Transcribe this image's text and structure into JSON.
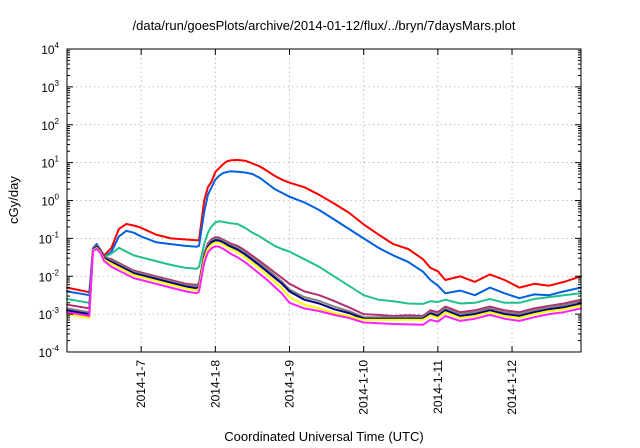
{
  "chart_data": {
    "type": "line",
    "title": "/data/run/goesPlots/archive/2014-01-12/flux/../bryn/7daysMars.plot",
    "xlabel": "Coordinated Universal Time (UTC)",
    "ylabel": "cGy/day",
    "yscale": "log",
    "ylim_exponents": [
      -4,
      4
    ],
    "y_tick_base": "10",
    "y_tick_exponents": [
      "-4",
      "-3",
      "-2",
      "-1",
      "0",
      "1",
      "2",
      "3",
      "4"
    ],
    "xlim_days": [
      6.0,
      12.93
    ],
    "x_tick_days": [
      7,
      8,
      9,
      10,
      11,
      12
    ],
    "x_tick_labels": [
      "2014-1-7",
      "2014-1-8",
      "2014-1-9",
      "2014-1-10",
      "2014-1-11",
      "2014-1-12"
    ],
    "grid": true,
    "legend": "none",
    "x_days": [
      6.0,
      6.3,
      6.35,
      6.4,
      6.45,
      6.5,
      6.6,
      6.7,
      6.8,
      6.9,
      7.0,
      7.2,
      7.4,
      7.6,
      7.75,
      7.78,
      7.85,
      7.9,
      7.95,
      8.0,
      8.05,
      8.1,
      8.15,
      8.2,
      8.3,
      8.4,
      8.5,
      8.6,
      8.7,
      8.8,
      8.9,
      9.0,
      9.2,
      9.4,
      9.6,
      9.8,
      10.0,
      10.2,
      10.4,
      10.6,
      10.8,
      10.9,
      11.0,
      11.1,
      11.3,
      11.5,
      11.7,
      11.9,
      12.1,
      12.3,
      12.5,
      12.7,
      12.93
    ],
    "series": [
      {
        "color": "#ff0000",
        "values_log10": [
          -2.3,
          -2.42,
          -1.3,
          -1.2,
          -1.3,
          -1.45,
          -1.25,
          -0.75,
          -0.62,
          -0.66,
          -0.72,
          -0.9,
          -1.0,
          -1.03,
          -1.05,
          -1.05,
          0.0,
          0.35,
          0.5,
          0.75,
          0.85,
          0.95,
          1.03,
          1.06,
          1.07,
          1.05,
          0.98,
          0.9,
          0.78,
          0.65,
          0.55,
          0.47,
          0.35,
          0.15,
          -0.08,
          -0.32,
          -0.63,
          -0.9,
          -1.15,
          -1.28,
          -1.55,
          -1.78,
          -1.87,
          -2.1,
          -2.0,
          -2.15,
          -1.95,
          -2.1,
          -2.3,
          -2.2,
          -2.25,
          -2.15,
          -2.0
        ]
      },
      {
        "color": "#0060e0",
        "values_log10": [
          -2.4,
          -2.5,
          -1.25,
          -1.15,
          -1.3,
          -1.5,
          -1.35,
          -0.95,
          -0.8,
          -0.85,
          -0.95,
          -1.1,
          -1.15,
          -1.2,
          -1.22,
          -1.2,
          -0.3,
          0.15,
          0.35,
          0.55,
          0.65,
          0.72,
          0.75,
          0.77,
          0.76,
          0.74,
          0.7,
          0.6,
          0.45,
          0.3,
          0.2,
          0.1,
          -0.05,
          -0.25,
          -0.5,
          -0.75,
          -1.0,
          -1.25,
          -1.45,
          -1.62,
          -1.88,
          -2.1,
          -2.25,
          -2.45,
          -2.38,
          -2.5,
          -2.3,
          -2.45,
          -2.58,
          -2.48,
          -2.5,
          -2.4,
          -2.3
        ]
      },
      {
        "color": "#20c090",
        "values_log10": [
          -2.6,
          -2.7,
          -1.25,
          -1.2,
          -1.3,
          -1.5,
          -1.4,
          -1.25,
          -1.35,
          -1.45,
          -1.5,
          -1.6,
          -1.7,
          -1.78,
          -1.8,
          -1.75,
          -1.15,
          -0.85,
          -0.68,
          -0.58,
          -0.55,
          -0.56,
          -0.58,
          -0.6,
          -0.62,
          -0.72,
          -0.85,
          -0.95,
          -1.08,
          -1.2,
          -1.28,
          -1.35,
          -1.55,
          -1.75,
          -2.0,
          -2.25,
          -2.5,
          -2.62,
          -2.66,
          -2.72,
          -2.73,
          -2.66,
          -2.68,
          -2.62,
          -2.72,
          -2.7,
          -2.6,
          -2.7,
          -2.7,
          -2.6,
          -2.55,
          -2.5,
          -2.45
        ]
      },
      {
        "color": "#b03070",
        "values_log10": [
          -2.75,
          -2.85,
          -1.27,
          -1.2,
          -1.3,
          -1.5,
          -1.55,
          -1.65,
          -1.75,
          -1.85,
          -1.9,
          -2.0,
          -2.1,
          -2.2,
          -2.23,
          -2.18,
          -1.4,
          -1.13,
          -1.02,
          -0.97,
          -0.98,
          -1.03,
          -1.08,
          -1.13,
          -1.2,
          -1.32,
          -1.46,
          -1.6,
          -1.75,
          -1.9,
          -2.05,
          -2.2,
          -2.4,
          -2.5,
          -2.65,
          -2.82,
          -3.0,
          -3.02,
          -3.05,
          -3.03,
          -3.05,
          -2.9,
          -2.95,
          -2.8,
          -2.95,
          -2.9,
          -2.8,
          -2.9,
          -2.95,
          -2.85,
          -2.78,
          -2.72,
          -2.62
        ]
      },
      {
        "color": "#808080",
        "values_log10": [
          -2.85,
          -2.95,
          -1.28,
          -1.22,
          -1.32,
          -1.52,
          -1.58,
          -1.68,
          -1.78,
          -1.88,
          -1.93,
          -2.03,
          -2.13,
          -2.23,
          -2.27,
          -2.22,
          -1.45,
          -1.17,
          -1.06,
          -1.01,
          -1.02,
          -1.06,
          -1.12,
          -1.17,
          -1.25,
          -1.37,
          -1.52,
          -1.66,
          -1.82,
          -1.98,
          -2.15,
          -2.35,
          -2.55,
          -2.65,
          -2.8,
          -2.92,
          -3.08,
          -3.08,
          -3.08,
          -3.08,
          -3.08,
          -2.95,
          -3.0,
          -2.85,
          -3.0,
          -2.95,
          -2.85,
          -2.95,
          -3.0,
          -2.9,
          -2.82,
          -2.77,
          -2.67
        ]
      },
      {
        "color": "#000080",
        "values_log10": [
          -2.9,
          -3.0,
          -1.29,
          -1.23,
          -1.33,
          -1.53,
          -1.62,
          -1.72,
          -1.82,
          -1.92,
          -1.97,
          -2.07,
          -2.17,
          -2.27,
          -2.32,
          -2.27,
          -1.5,
          -1.22,
          -1.1,
          -1.05,
          -1.06,
          -1.1,
          -1.16,
          -1.21,
          -1.3,
          -1.42,
          -1.57,
          -1.72,
          -1.88,
          -2.04,
          -2.2,
          -2.4,
          -2.62,
          -2.72,
          -2.87,
          -2.97,
          -3.12,
          -3.12,
          -3.12,
          -3.12,
          -3.12,
          -2.98,
          -3.05,
          -2.9,
          -3.05,
          -3.0,
          -2.9,
          -3.0,
          -3.05,
          -2.95,
          -2.87,
          -2.82,
          -2.72
        ]
      },
      {
        "color": "#ffff00",
        "values_log10": [
          -3.0,
          -3.1,
          -1.31,
          -1.26,
          -1.36,
          -1.56,
          -1.67,
          -1.77,
          -1.87,
          -1.97,
          -2.02,
          -2.12,
          -2.22,
          -2.32,
          -2.37,
          -2.32,
          -1.55,
          -1.27,
          -1.16,
          -1.11,
          -1.12,
          -1.16,
          -1.22,
          -1.28,
          -1.37,
          -1.5,
          -1.65,
          -1.8,
          -1.97,
          -2.14,
          -2.32,
          -2.55,
          -2.75,
          -2.85,
          -2.97,
          -3.05,
          -3.15,
          -3.15,
          -3.15,
          -3.15,
          -3.15,
          -3.03,
          -3.1,
          -2.95,
          -3.1,
          -3.05,
          -2.95,
          -3.05,
          -3.1,
          -3.0,
          -2.92,
          -2.87,
          -2.77
        ]
      },
      {
        "color": "#ff20ff",
        "values_log10": [
          -2.95,
          -3.05,
          -1.33,
          -1.28,
          -1.38,
          -1.6,
          -1.75,
          -1.85,
          -1.95,
          -2.05,
          -2.1,
          -2.2,
          -2.3,
          -2.4,
          -2.45,
          -2.4,
          -1.65,
          -1.37,
          -1.26,
          -1.21,
          -1.22,
          -1.27,
          -1.33,
          -1.4,
          -1.5,
          -1.63,
          -1.78,
          -1.94,
          -2.1,
          -2.28,
          -2.46,
          -2.7,
          -2.85,
          -2.92,
          -3.02,
          -3.1,
          -3.22,
          -3.24,
          -3.26,
          -3.27,
          -3.28,
          -3.15,
          -3.2,
          -3.05,
          -3.18,
          -3.12,
          -3.02,
          -3.12,
          -3.18,
          -3.08,
          -3.0,
          -2.95,
          -2.85
        ]
      }
    ]
  }
}
